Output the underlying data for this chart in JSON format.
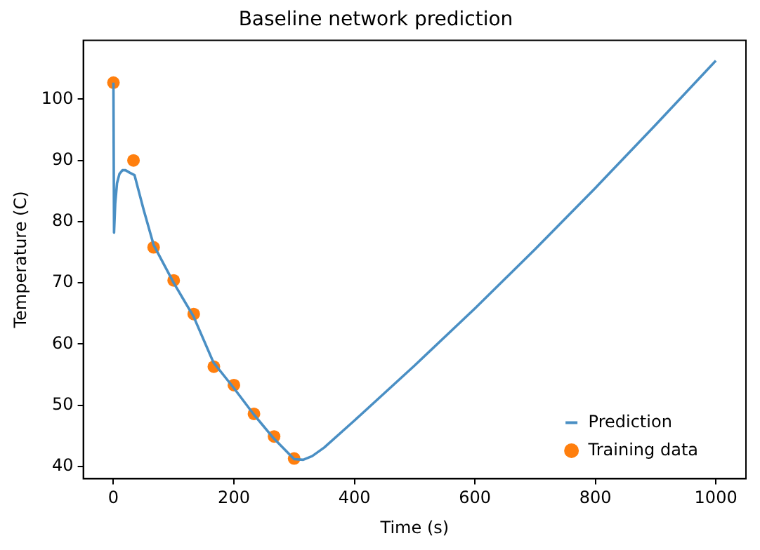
{
  "chart_data": {
    "type": "line",
    "title": "Baseline network prediction",
    "xlabel": "Time (s)",
    "ylabel": "Temperature (C)",
    "xlim": [
      -50,
      1050
    ],
    "xticks": [
      0,
      200,
      400,
      600,
      800,
      1000
    ],
    "ylim": [
      38,
      109.6
    ],
    "yticks": [
      40,
      50,
      60,
      70,
      80,
      90,
      100
    ],
    "grid": false,
    "legend": "bottom right",
    "series": [
      {
        "name": "Prediction",
        "type": "line",
        "color": "#4a8fc4",
        "marker": "none",
        "x": [
          0,
          1,
          3,
          6,
          10,
          15,
          20,
          27,
          35,
          50,
          66.7,
          100,
          133,
          166,
          200,
          233,
          266,
          300,
          315,
          330,
          350,
          400,
          500,
          600,
          700,
          800,
          900,
          1000
        ],
        "values": [
          102.7,
          78.2,
          83,
          86.3,
          87.8,
          88.4,
          88.4,
          88,
          87.6,
          82,
          76.2,
          70,
          64.5,
          57,
          52.8,
          48.5,
          44.6,
          41.2,
          41.1,
          41.7,
          43.1,
          47.5,
          56.5,
          65.8,
          75.5,
          85.5,
          95.8,
          106.3
        ]
      },
      {
        "name": "Training data",
        "type": "scatter",
        "color": "#ff7f0e",
        "marker": "circle",
        "x": [
          0,
          33.3,
          66.7,
          100,
          133.3,
          166.7,
          200,
          233.3,
          266.7,
          300
        ],
        "values": [
          102.7,
          90,
          75.8,
          70.4,
          64.9,
          56.3,
          53.3,
          48.6,
          44.9,
          41.3
        ]
      }
    ]
  }
}
